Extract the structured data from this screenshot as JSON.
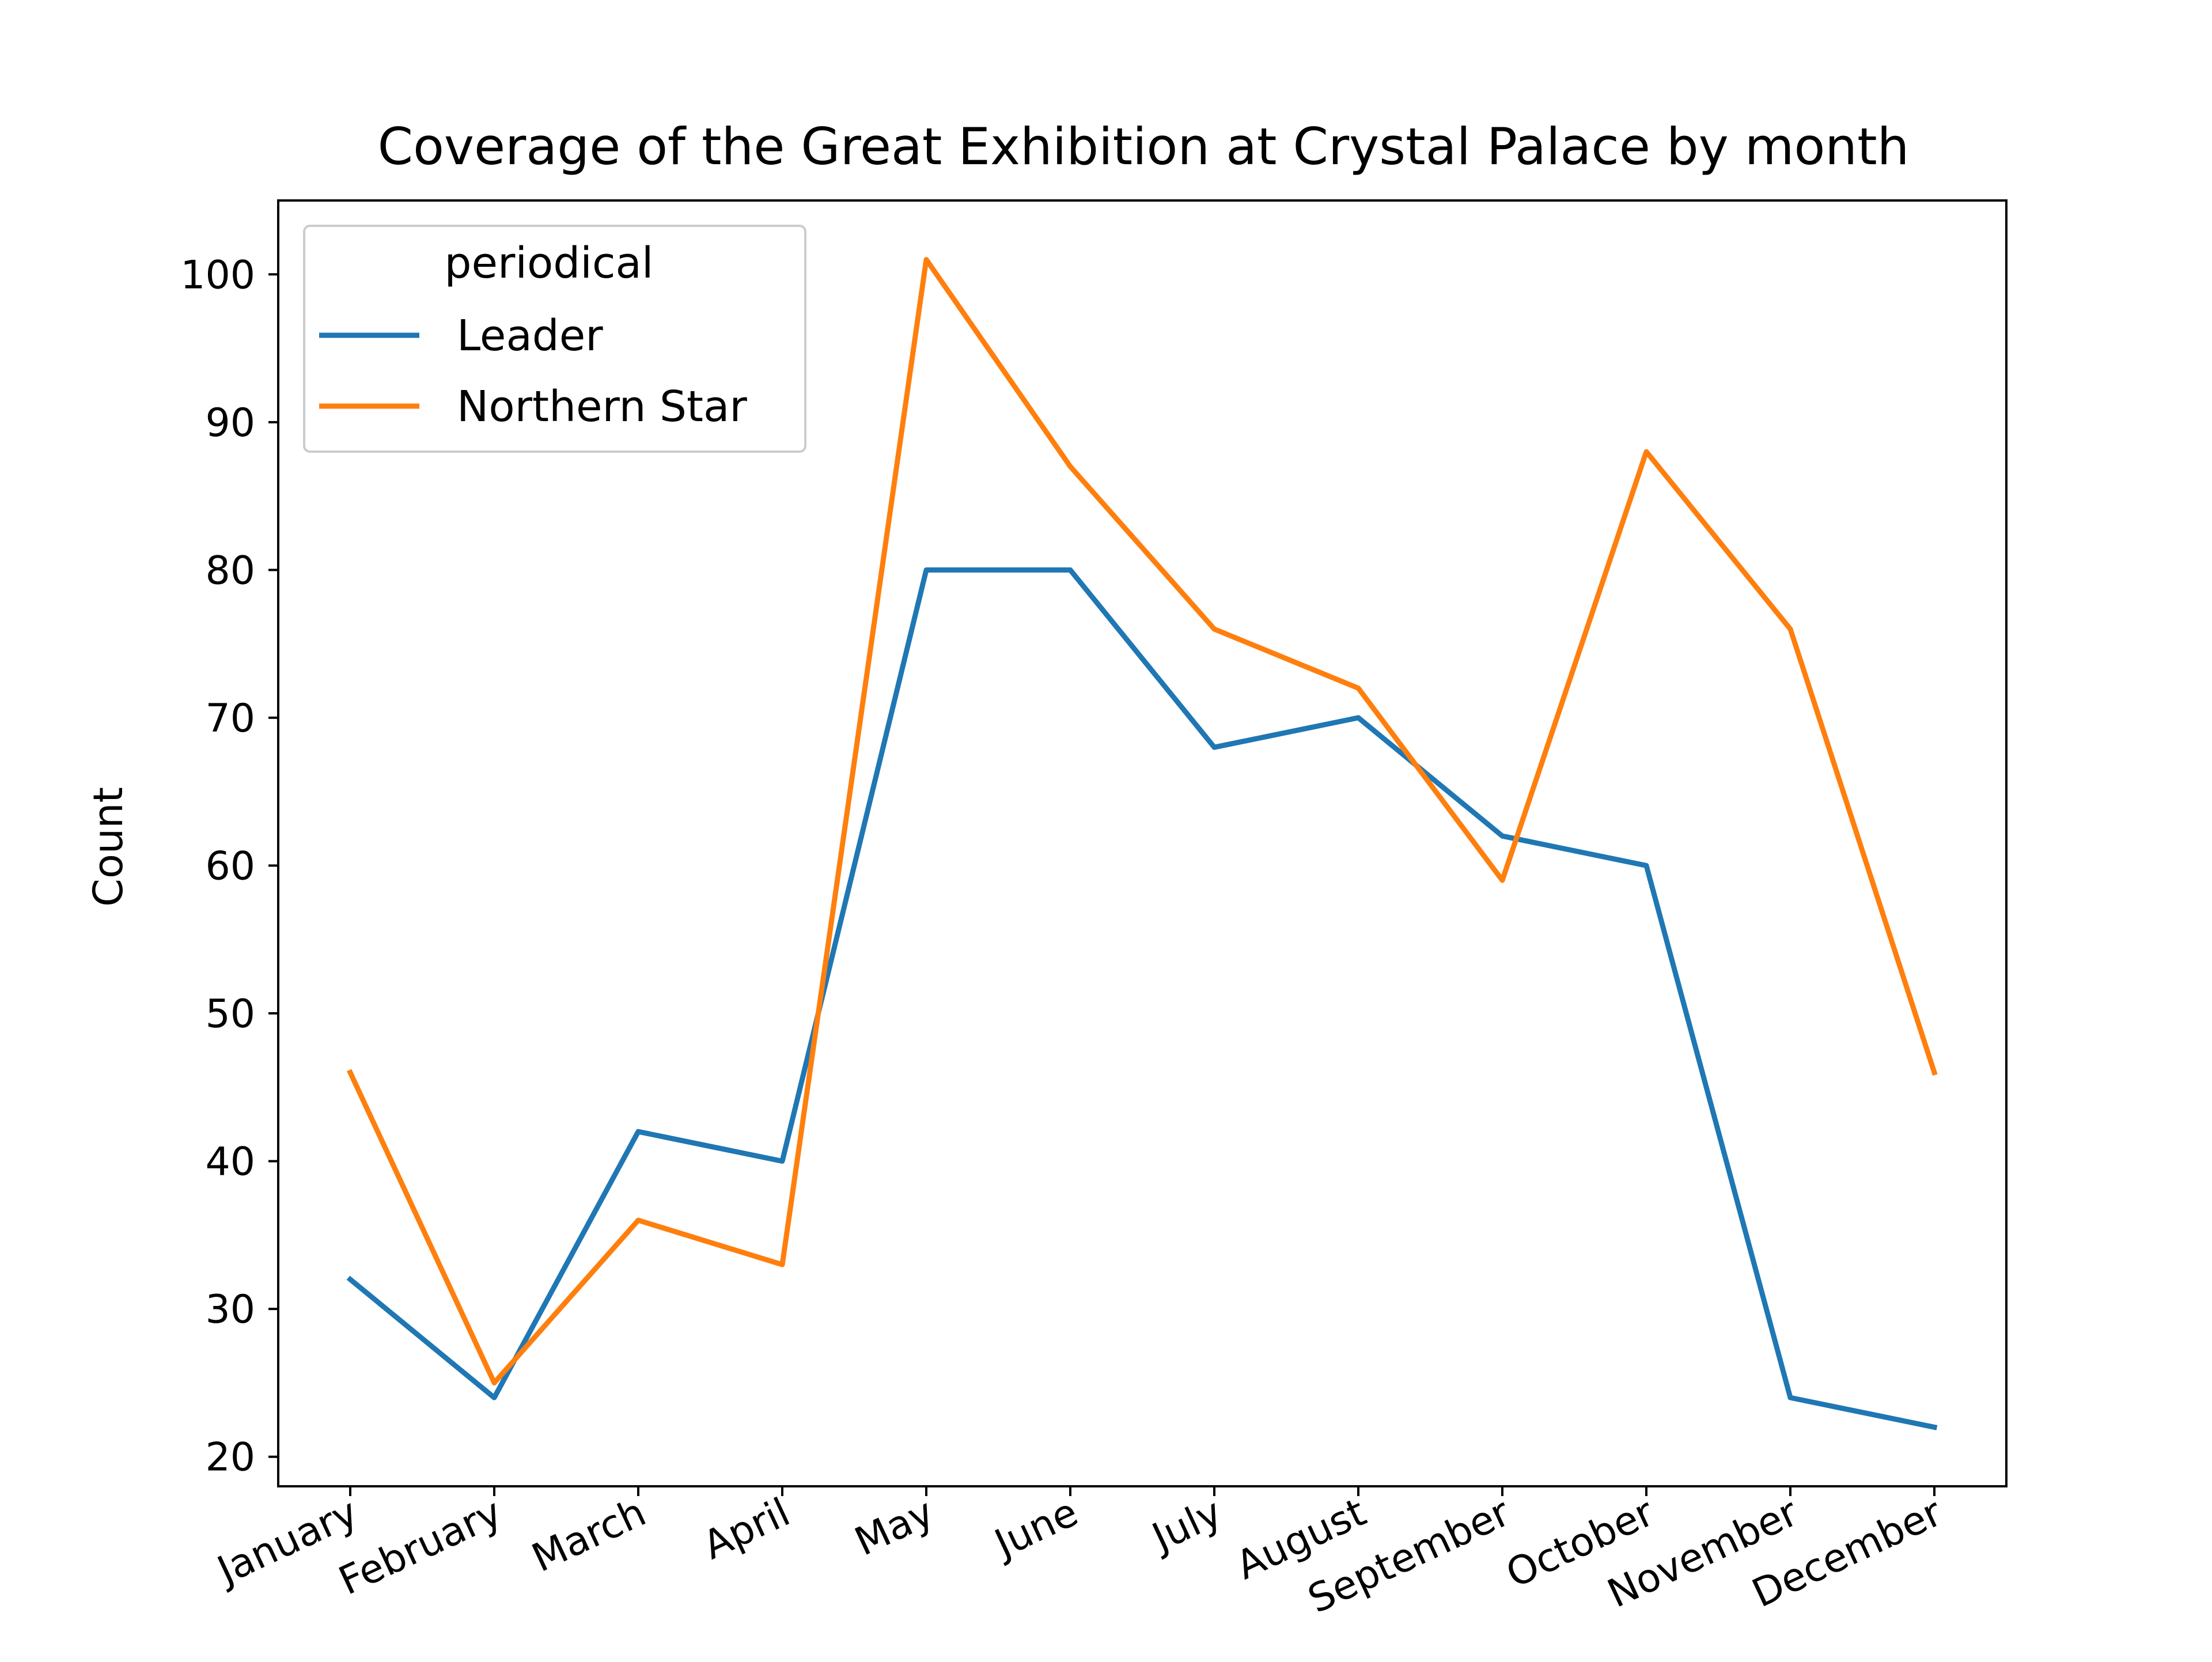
{
  "chart_data": {
    "type": "line",
    "title": "Coverage of the Great Exhibition at Crystal Palace by month",
    "xlabel": "",
    "ylabel": "Count",
    "categories": [
      "January",
      "February",
      "March",
      "April",
      "May",
      "June",
      "July",
      "August",
      "September",
      "October",
      "November",
      "December"
    ],
    "ylim": [
      18,
      105
    ],
    "yticks": [
      20,
      30,
      40,
      50,
      60,
      70,
      80,
      90,
      100
    ],
    "ytick_labels": [
      "20",
      "30",
      "40",
      "50",
      "60",
      "70",
      "80",
      "90",
      "100"
    ],
    "grid": false,
    "legend": {
      "title": "periodical",
      "position": "top-left"
    },
    "series": [
      {
        "name": "Leader",
        "color": "#1f77b4",
        "values": [
          32,
          24,
          42,
          40,
          80,
          80,
          68,
          70,
          62,
          60,
          24,
          22
        ]
      },
      {
        "name": "Northern Star",
        "color": "#ff7f0e",
        "values": [
          46,
          25,
          36,
          33,
          101,
          87,
          76,
          72,
          59,
          88,
          76,
          46
        ]
      }
    ]
  }
}
